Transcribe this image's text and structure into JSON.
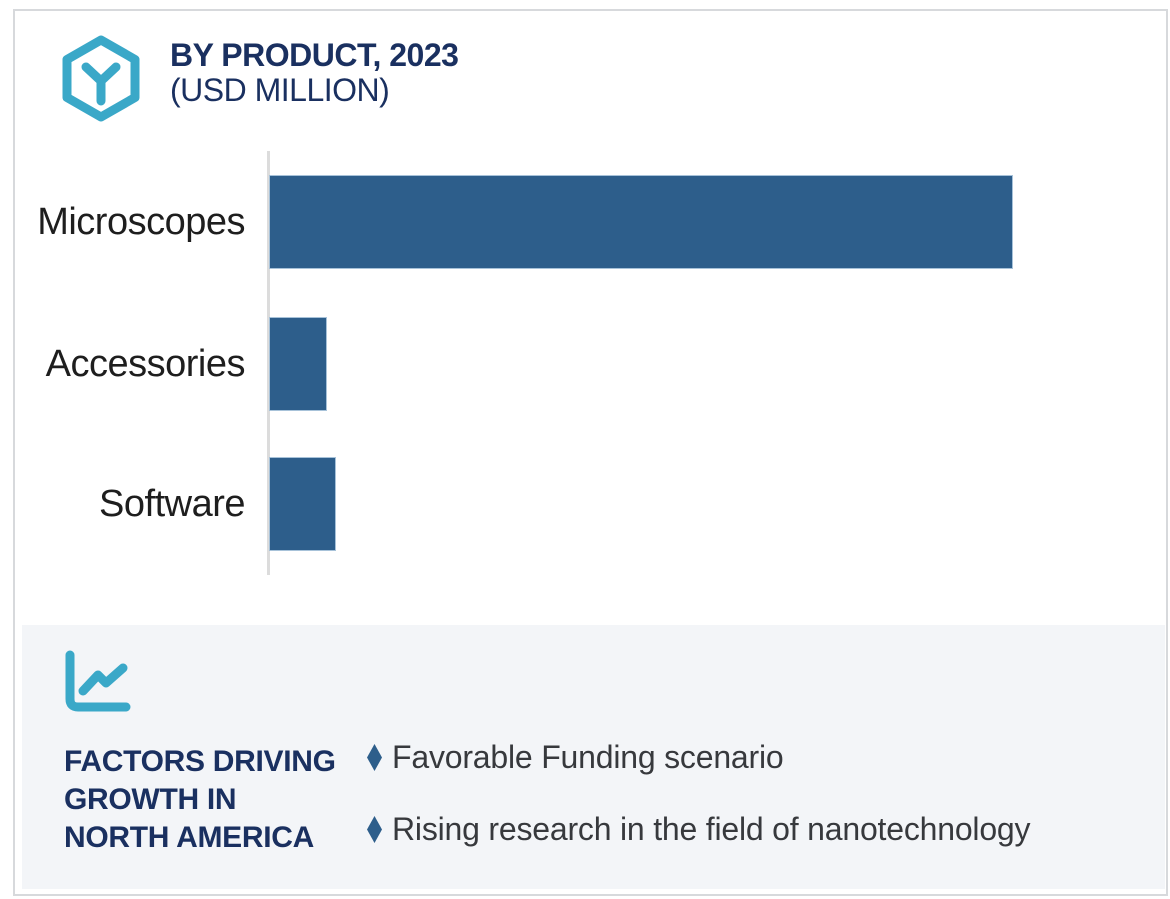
{
  "header": {
    "title": "BY PRODUCT, 2023",
    "subtitle": "(USD MILLION)",
    "icon": "hexagon-cube-icon"
  },
  "chart_data": {
    "type": "bar",
    "orientation": "horizontal",
    "title": "BY PRODUCT, 2023 (USD MILLION)",
    "categories": [
      "Microscopes",
      "Accessories",
      "Software"
    ],
    "values": [
      100,
      7.8,
      9.0
    ],
    "values_note": "relative bar lengths as % of longest bar; numeric axis and data labels are not shown in the image",
    "xlabel": "",
    "ylabel": "",
    "grid": false,
    "legend": false,
    "bar_color": "#2d5e8b",
    "axis_line_color": "#dcdcdc"
  },
  "factors_panel": {
    "icon": "line-chart-icon",
    "heading_lines": [
      "FACTORS DRIVING",
      "GROWTH IN",
      "NORTH AMERICA"
    ],
    "bullets": [
      {
        "marker": "diamond-icon",
        "text": "Favorable Funding scenario"
      },
      {
        "marker": "diamond-icon",
        "text": "Rising research in the field of nanotechnology"
      }
    ],
    "panel_bg": "#f3f5f8"
  },
  "colors": {
    "accent_teal": "#3aa8c8",
    "navy": "#1a3060",
    "bar_blue": "#2d5e8b",
    "bullet_text": "#37393d",
    "label_text": "#1e1e1e",
    "card_border": "#d7d9dc"
  }
}
